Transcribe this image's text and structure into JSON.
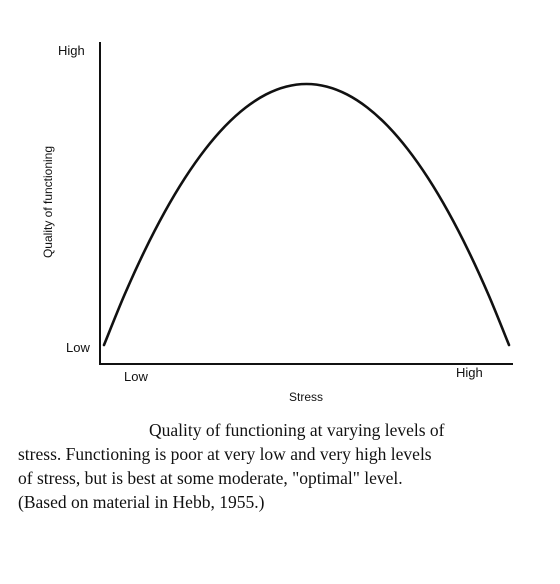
{
  "chart_data": {
    "type": "line",
    "title": "",
    "xlabel": "Stress",
    "ylabel": "Quality of functioning",
    "x_ticks": [
      "Low",
      "High"
    ],
    "y_ticks": [
      "Low",
      "High"
    ],
    "xlim": [
      0,
      1
    ],
    "ylim": [
      0,
      1
    ],
    "grid": false,
    "legend": "none",
    "line_color": "#111111",
    "series": [
      {
        "x": [
          0.0,
          0.05,
          0.1,
          0.15,
          0.2,
          0.25,
          0.3,
          0.35,
          0.4,
          0.45,
          0.5,
          0.55,
          0.6,
          0.65,
          0.7,
          0.75,
          0.8,
          0.85,
          0.9,
          0.95,
          1.0
        ],
        "y": [
          0.0,
          0.19,
          0.36,
          0.51,
          0.64,
          0.75,
          0.84,
          0.91,
          0.96,
          0.99,
          1.0,
          0.99,
          0.96,
          0.91,
          0.84,
          0.75,
          0.64,
          0.51,
          0.36,
          0.19,
          0.0
        ]
      }
    ]
  },
  "caption": {
    "lines": [
      "Quality of functioning at varying levels of",
      "stress. Functioning is poor at very low and very high levels",
      "of stress, but is best at some moderate, \"optimal\" level.",
      "(Based on material in Hebb, 1955.)"
    ]
  }
}
